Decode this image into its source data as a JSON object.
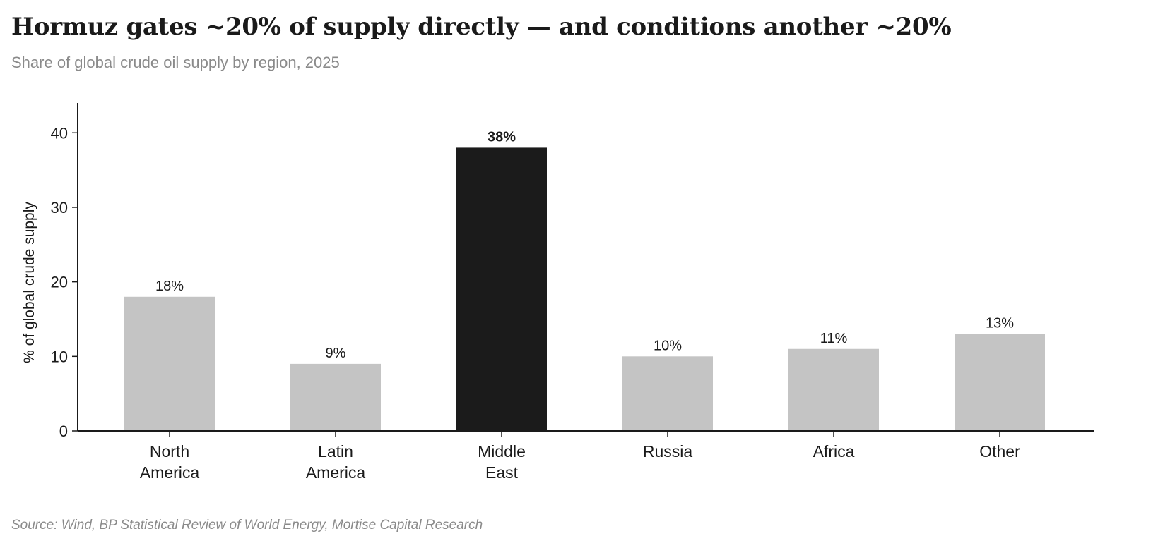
{
  "title": "Hormuz gates ~20% of supply directly — and conditions another ~20%",
  "subtitle": "Share of global crude oil supply by region, 2025",
  "source": "Source: Wind, BP Statistical Review of World Energy, Mortise Capital Research",
  "chart_data": {
    "type": "bar",
    "categories": [
      [
        "North",
        "America"
      ],
      [
        "Latin",
        "America"
      ],
      [
        "Middle",
        "East"
      ],
      [
        "Russia"
      ],
      [
        "Africa"
      ],
      [
        "Other"
      ]
    ],
    "values": [
      18,
      9,
      38,
      10,
      11,
      13
    ],
    "data_labels": [
      "18%",
      "9%",
      "38%",
      "10%",
      "11%",
      "13%"
    ],
    "highlight_index": 2,
    "ylabel": "% of global crude supply",
    "xlabel": "",
    "ylim": [
      0,
      44
    ],
    "yticks": [
      0,
      10,
      20,
      30,
      40
    ],
    "grid": false,
    "colors": {
      "default": "#c4c4c4",
      "highlight": "#1b1b1b",
      "axis": "#1a1a1a"
    }
  }
}
